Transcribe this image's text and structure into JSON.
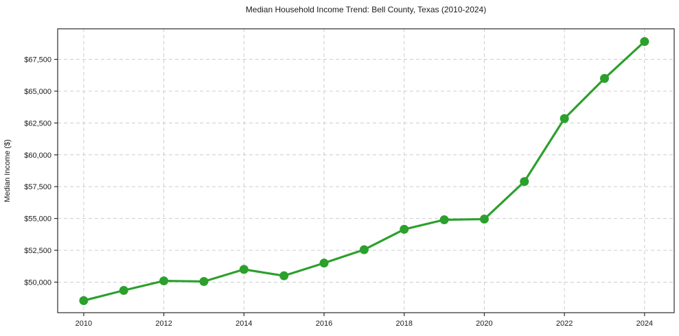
{
  "chart_data": {
    "type": "line",
    "title": "Median Household Income Trend: Bell County, Texas (2010-2024)",
    "xlabel": "",
    "ylabel": "Median Income ($)",
    "x": [
      2010,
      2011,
      2012,
      2013,
      2014,
      2015,
      2016,
      2017,
      2018,
      2019,
      2020,
      2021,
      2022,
      2023,
      2024
    ],
    "values": [
      48550,
      49350,
      50100,
      50050,
      51000,
      50500,
      51500,
      52550,
      54150,
      54900,
      54950,
      57900,
      62850,
      66000,
      68900
    ],
    "series_name": "Median household income",
    "line_color": "#2ca02c",
    "marker": "circle",
    "marker_radius": 6.5,
    "grid": true,
    "legend": "none",
    "xlim": [
      2009.35,
      2024.74
    ],
    "ylim": [
      47600,
      69900
    ],
    "xticks": [
      {
        "v": 2010,
        "label": "2010"
      },
      {
        "v": 2012,
        "label": "2012"
      },
      {
        "v": 2014,
        "label": "2014"
      },
      {
        "v": 2016,
        "label": "2016"
      },
      {
        "v": 2018,
        "label": "2018"
      },
      {
        "v": 2020,
        "label": "2020"
      },
      {
        "v": 2022,
        "label": "2022"
      },
      {
        "v": 2024,
        "label": "2024"
      }
    ],
    "yticks": [
      {
        "v": 50000,
        "label": "$50,000"
      },
      {
        "v": 52500,
        "label": "$52,500"
      },
      {
        "v": 55000,
        "label": "$55,000"
      },
      {
        "v": 57500,
        "label": "$57,500"
      },
      {
        "v": 60000,
        "label": "$60,000"
      },
      {
        "v": 62500,
        "label": "$62,500"
      },
      {
        "v": 65000,
        "label": "$65,000"
      },
      {
        "v": 67500,
        "label": "$67,500"
      }
    ]
  }
}
